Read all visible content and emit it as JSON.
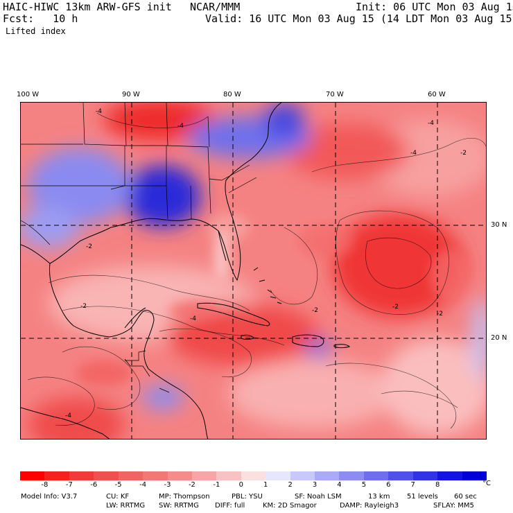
{
  "header": {
    "model": "HAIC-HIWC 13km ARW-GFS init",
    "org": "NCAR/MMM",
    "init": "Init: 06 UTC Mon 03 Aug 15",
    "fcst": "Fcst:   10 h",
    "valid": "Valid: 16 UTC Mon 03 Aug 15 (14 LDT Mon 03 Aug 15)",
    "field": "Lifted index"
  },
  "map": {
    "lon_labels": [
      "100 W",
      "90 W",
      "80 W",
      "70 W",
      "60 W"
    ],
    "lat_labels": [
      "30 N",
      "20 N"
    ],
    "colors": {
      "strong_red": "#ee2828",
      "mid_red": "#f46464",
      "light_red": "#f89a9a",
      "pale_red": "#fbc8c8",
      "pale_blue": "#c8c8fa",
      "mid_blue": "#7878f0",
      "strong_blue": "#3c3ce6",
      "deep_blue": "#1414d2"
    },
    "contour_labels": [
      "-4",
      "-4",
      "-2",
      "-4",
      "-2",
      "-2",
      "-2",
      "-2",
      "-4",
      "-4",
      "-2",
      "-4"
    ]
  },
  "colorbar": {
    "labels": [
      "-8",
      "-7",
      "-6",
      "-5",
      "-4",
      "-3",
      "-2",
      "-1",
      "0",
      "1",
      "2",
      "3",
      "4",
      "5",
      "6",
      "7",
      "8"
    ],
    "unit": "°C",
    "colors": [
      "#ff0000",
      "#f52020",
      "#f23a3a",
      "#f05050",
      "#f06464",
      "#f27878",
      "#f48c8c",
      "#f6a6a6",
      "#f9c2c2",
      "#fce0e0",
      "#e6e6fc",
      "#c8c8fa",
      "#aaaaf6",
      "#8c8cf2",
      "#6e6eee",
      "#5050ea",
      "#3232e6",
      "#1414e0",
      "#0000d6"
    ]
  },
  "info": {
    "line1": [
      "Model Info: V3.7",
      "CU: KF",
      "MP: Thompson",
      "PBL: YSU",
      "SF: Noah LSM",
      "13 km",
      "51 levels",
      "60 sec"
    ],
    "line2": [
      "LW: RRTMG",
      "SW: RRTMG",
      "DIFF: full",
      "KM: 2D Smagor",
      "DAMP: Rayleigh3",
      "SFLAY: MM5"
    ]
  }
}
